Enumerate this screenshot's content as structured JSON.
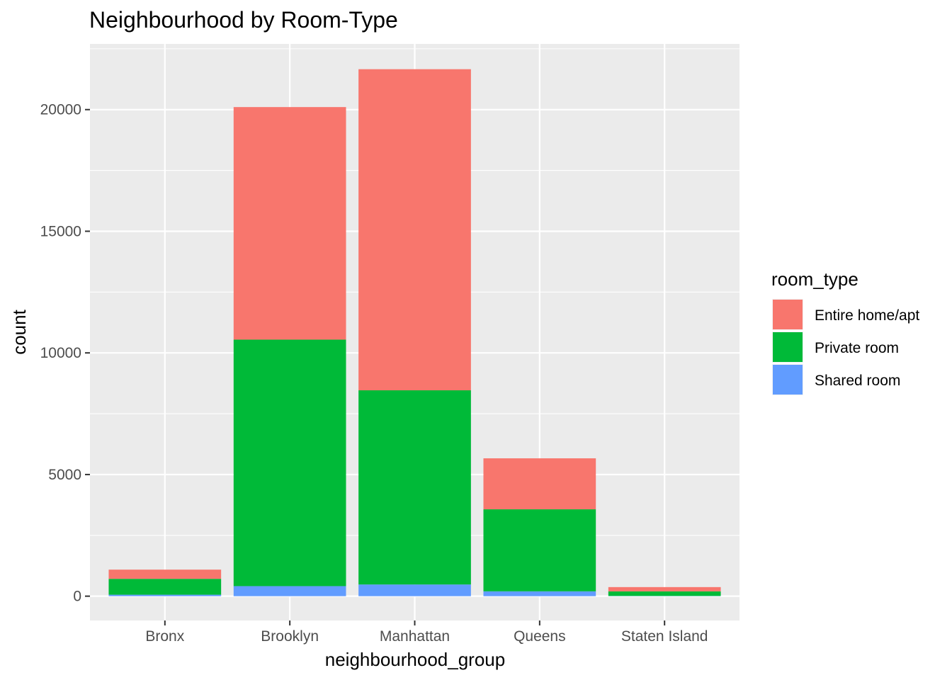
{
  "chart_data": {
    "type": "bar",
    "stacked": true,
    "title": "Neighbourhood by Room-Type",
    "xlabel": "neighbourhood_group",
    "ylabel": "count",
    "categories": [
      "Bronx",
      "Brooklyn",
      "Manhattan",
      "Queens",
      "Staten Island"
    ],
    "series": [
      {
        "name": "Entire home/apt",
        "color": "#F8766D",
        "values": [
          379,
          9559,
          13199,
          2096,
          176
        ]
      },
      {
        "name": "Private room",
        "color": "#00BA38",
        "values": [
          652,
          10132,
          7982,
          3372,
          188
        ]
      },
      {
        "name": "Shared room",
        "color": "#619CFF",
        "values": [
          60,
          413,
          480,
          198,
          9
        ]
      }
    ],
    "stack_order_bottom_to_top": [
      "Shared room",
      "Private room",
      "Entire home/apt"
    ],
    "yticks": [
      0,
      5000,
      10000,
      15000,
      20000
    ],
    "ylim": [
      -1000,
      22700
    ],
    "grid": true,
    "legend": {
      "title": "room_type",
      "position": "right"
    }
  }
}
